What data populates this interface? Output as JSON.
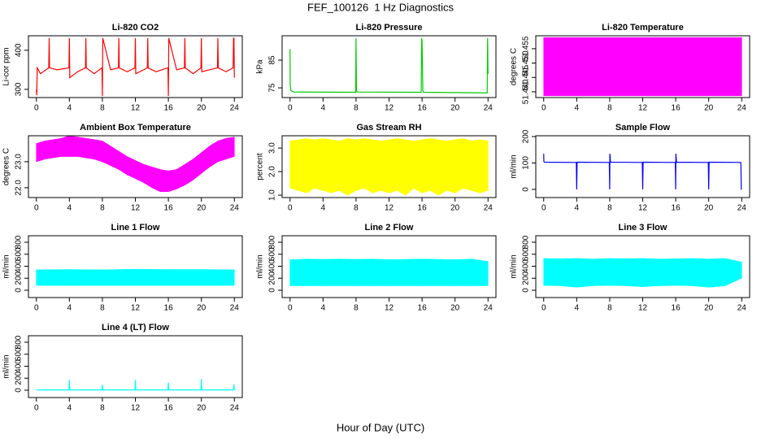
{
  "title": "FEF_100126  1 Hz Diagnostics",
  "xlabel": "Hour of Day (UTC)",
  "chart_data": [
    {
      "type": "line",
      "title": "Li-820 CO2",
      "ylabel": "Li-cor ppm",
      "color": "#ff0000",
      "xlim": [
        -0.96,
        24.96
      ],
      "xticks": [
        0,
        4,
        8,
        12,
        16,
        20,
        24
      ],
      "ylim": [
        279,
        437
      ],
      "yticks": [
        300,
        400
      ],
      "x": [
        0,
        0.05,
        0.1,
        0.5,
        1.5,
        1.55,
        1.6,
        2.5,
        3.95,
        4.0,
        4.05,
        5,
        5.95,
        6.0,
        6.05,
        7,
        7.95,
        8.0,
        8.05,
        9,
        9.95,
        10.0,
        10.05,
        11,
        11.95,
        12.0,
        12.05,
        13,
        13.45,
        13.5,
        13.55,
        14.5,
        15.95,
        16.0,
        16.05,
        17,
        17.95,
        18.0,
        18.05,
        19,
        19.95,
        20.0,
        20.05,
        21,
        21.95,
        22.0,
        22.05,
        23,
        23.85,
        23.9,
        23.95,
        24.0
      ],
      "values": [
        300,
        285,
        355,
        340,
        355,
        431,
        355,
        350,
        355,
        431,
        330,
        345,
        355,
        431,
        355,
        340,
        355,
        283,
        431,
        350,
        355,
        431,
        355,
        345,
        355,
        431,
        340,
        350,
        355,
        431,
        355,
        345,
        355,
        283,
        431,
        350,
        355,
        431,
        355,
        340,
        355,
        431,
        345,
        350,
        355,
        431,
        355,
        345,
        355,
        431,
        431,
        330
      ]
    },
    {
      "type": "line",
      "title": "Li-820 Pressure",
      "ylabel": "kPa",
      "color": "#00cc00",
      "xlim": [
        -0.96,
        24.96
      ],
      "xticks": [
        0,
        4,
        8,
        12,
        16,
        20,
        24
      ],
      "ylim": [
        71.5,
        93.8
      ],
      "yticks": [
        75,
        85
      ],
      "x": [
        0,
        0.02,
        0.1,
        0.3,
        0.5,
        7.95,
        8.0,
        8.05,
        8.1,
        15.9,
        15.95,
        16.0,
        16.1,
        16.2,
        23.9,
        23.95,
        24.0
      ],
      "values": [
        89,
        76,
        74,
        73.7,
        73.5,
        73.4,
        93,
        74,
        73.5,
        73.4,
        93,
        92,
        74,
        73.4,
        73.2,
        93,
        80
      ]
    },
    {
      "type": "band",
      "title": "Li-820 Temperature",
      "ylabel": "degrees C",
      "color": "#ff00ff",
      "xlim": [
        -0.96,
        24.96
      ],
      "xticks": [
        0,
        4,
        8,
        12,
        16,
        20,
        24
      ],
      "ylim": [
        51.438,
        51.4595
      ],
      "yticks": [
        {
          "value": 51.44,
          "label": "51.440"
        },
        {
          "value": 51.445,
          "label": "51.445"
        },
        {
          "value": 51.45,
          "label": "51.450"
        },
        {
          "value": 51.455,
          "label": "51.455"
        }
      ],
      "x": [
        0,
        24
      ],
      "lower": [
        51.4386,
        51.4386
      ],
      "upper": [
        51.4589,
        51.4589
      ]
    },
    {
      "type": "band",
      "title": "Ambient Box Temperature",
      "ylabel": "degrees C",
      "color": "#ff00ff",
      "xlim": [
        -0.96,
        24.96
      ],
      "xticks": [
        0,
        4,
        8,
        12,
        16,
        20,
        24
      ],
      "ylim": [
        21.62,
        24.0
      ],
      "yticks": [
        {
          "value": 22,
          "label": "22.0"
        },
        {
          "value": 23,
          "label": "23.0"
        }
      ],
      "x": [
        0,
        1,
        2,
        3,
        4,
        5,
        6,
        7,
        8,
        9,
        10,
        11,
        12,
        13,
        14,
        15,
        16,
        17,
        18,
        19,
        20,
        21,
        22,
        23,
        24
      ],
      "upper": [
        23.7,
        23.8,
        23.85,
        23.9,
        24.0,
        23.95,
        23.9,
        23.85,
        23.8,
        23.6,
        23.4,
        23.2,
        23.05,
        22.9,
        22.8,
        22.7,
        22.65,
        22.7,
        22.9,
        23.1,
        23.35,
        23.6,
        23.8,
        23.9,
        23.95
      ],
      "lower": [
        23.0,
        23.1,
        23.15,
        23.2,
        23.2,
        23.2,
        23.15,
        23.1,
        23.0,
        22.85,
        22.7,
        22.5,
        22.35,
        22.2,
        22.0,
        21.85,
        21.85,
        21.95,
        22.1,
        22.3,
        22.55,
        22.8,
        23.0,
        23.1,
        23.2
      ]
    },
    {
      "type": "band",
      "title": "Gas Stream RH",
      "ylabel": "percent",
      "color": "#ffff00",
      "xlim": [
        -0.96,
        24.96
      ],
      "xticks": [
        0,
        4,
        8,
        12,
        16,
        20,
        24
      ],
      "ylim": [
        0.9,
        3.52
      ],
      "yticks": [
        {
          "value": 1,
          "label": "1.0"
        },
        {
          "value": 2,
          "label": "2.0"
        },
        {
          "value": 3,
          "label": "3.0"
        }
      ],
      "x": [
        0,
        1,
        2,
        3,
        4,
        5,
        6,
        7,
        8,
        9,
        10,
        11,
        12,
        13,
        14,
        15,
        16,
        17,
        18,
        19,
        20,
        21,
        22,
        23,
        24
      ],
      "upper": [
        3.3,
        3.35,
        3.4,
        3.35,
        3.4,
        3.35,
        3.3,
        3.4,
        3.35,
        3.4,
        3.35,
        3.3,
        3.35,
        3.4,
        3.35,
        3.3,
        3.35,
        3.4,
        3.35,
        3.3,
        3.35,
        3.4,
        3.3,
        3.35,
        3.3
      ],
      "lower": [
        1.3,
        1.2,
        1.1,
        1.3,
        1.2,
        1.1,
        1.2,
        1.0,
        1.2,
        1.3,
        1.1,
        1.2,
        1.1,
        1.2,
        1.0,
        1.3,
        1.1,
        1.2,
        1.0,
        1.2,
        1.1,
        1.3,
        1.2,
        1.1,
        1.2
      ]
    },
    {
      "type": "line",
      "title": "Sample Flow",
      "ylabel": "ml/min",
      "color": "#0000ff",
      "xlim": [
        -0.96,
        24.96
      ],
      "xticks": [
        0,
        4,
        8,
        12,
        16,
        20,
        24
      ],
      "ylim": [
        -31,
        203
      ],
      "yticks": [
        0,
        100,
        200
      ],
      "x": [
        0,
        0.02,
        0.1,
        3.95,
        4.0,
        4.05,
        7.95,
        8.0,
        8.02,
        8.1,
        11.95,
        12.0,
        12.05,
        15.95,
        16.0,
        16.02,
        16.1,
        19.95,
        20.0,
        20.05,
        23.9,
        23.95,
        24.0
      ],
      "values": [
        135,
        105,
        103,
        102,
        0,
        103,
        102,
        0,
        135,
        103,
        102,
        0,
        103,
        102,
        0,
        135,
        103,
        102,
        0,
        103,
        102,
        0,
        0
      ]
    },
    {
      "type": "band",
      "title": "Line 1 Flow",
      "ylabel": "ml/min",
      "color": "#00ffff",
      "xlim": [
        -0.96,
        24.96
      ],
      "xticks": [
        0,
        4,
        8,
        12,
        16,
        20,
        24
      ],
      "ylim": [
        -122,
        908
      ],
      "yticks": [
        0,
        200,
        400,
        600,
        800
      ],
      "x": [
        0,
        4,
        8,
        12,
        16,
        20,
        24
      ],
      "upper": [
        340,
        345,
        340,
        350,
        345,
        345,
        340
      ],
      "lower": [
        80,
        80,
        80,
        80,
        80,
        80,
        80
      ]
    },
    {
      "type": "band",
      "title": "Line 2 Flow",
      "ylabel": "ml/min",
      "color": "#00ffff",
      "xlim": [
        -0.96,
        24.96
      ],
      "xticks": [
        0,
        4,
        8,
        12,
        16,
        20,
        24
      ],
      "ylim": [
        -122,
        908
      ],
      "yticks": [
        0,
        200,
        400,
        600,
        800
      ],
      "x": [
        0,
        2,
        4,
        6,
        8,
        10,
        12,
        14,
        16,
        18,
        20,
        22,
        24
      ],
      "upper": [
        510,
        520,
        515,
        520,
        515,
        520,
        510,
        515,
        520,
        515,
        510,
        520,
        480
      ],
      "lower": [
        75,
        75,
        75,
        75,
        75,
        75,
        75,
        75,
        75,
        75,
        75,
        75,
        75
      ]
    },
    {
      "type": "band",
      "title": "Line 3 Flow",
      "ylabel": "ml/min",
      "color": "#00ffff",
      "xlim": [
        -0.96,
        24.96
      ],
      "xticks": [
        0,
        4,
        8,
        12,
        16,
        20,
        24
      ],
      "ylim": [
        -122,
        908
      ],
      "yticks": [
        0,
        200,
        400,
        600,
        800
      ],
      "x": [
        0,
        2,
        4,
        6,
        8,
        10,
        12,
        14,
        16,
        18,
        20,
        22,
        24
      ],
      "upper": [
        530,
        525,
        530,
        520,
        530,
        525,
        530,
        520,
        525,
        530,
        520,
        530,
        470
      ],
      "lower": [
        80,
        75,
        50,
        75,
        80,
        75,
        60,
        75,
        80,
        75,
        50,
        75,
        200
      ]
    },
    {
      "type": "line",
      "title": "Line 4 (LT) Flow",
      "ylabel": "ml/min",
      "color": "#00ffff",
      "xlim": [
        -0.96,
        24.96
      ],
      "xticks": [
        0,
        4,
        8,
        12,
        16,
        20,
        24
      ],
      "ylim": [
        -122,
        908
      ],
      "yticks": [
        0,
        200,
        400,
        600,
        800
      ],
      "x": [
        0,
        3.95,
        4.0,
        4.05,
        7.95,
        8.0,
        8.05,
        11.95,
        12.0,
        12.05,
        15.95,
        16.0,
        16.05,
        19.95,
        20.0,
        20.05,
        23.9,
        23.95,
        24.0
      ],
      "values": [
        5,
        5,
        170,
        5,
        5,
        90,
        5,
        5,
        170,
        5,
        5,
        130,
        5,
        5,
        190,
        5,
        5,
        100,
        5
      ]
    }
  ]
}
